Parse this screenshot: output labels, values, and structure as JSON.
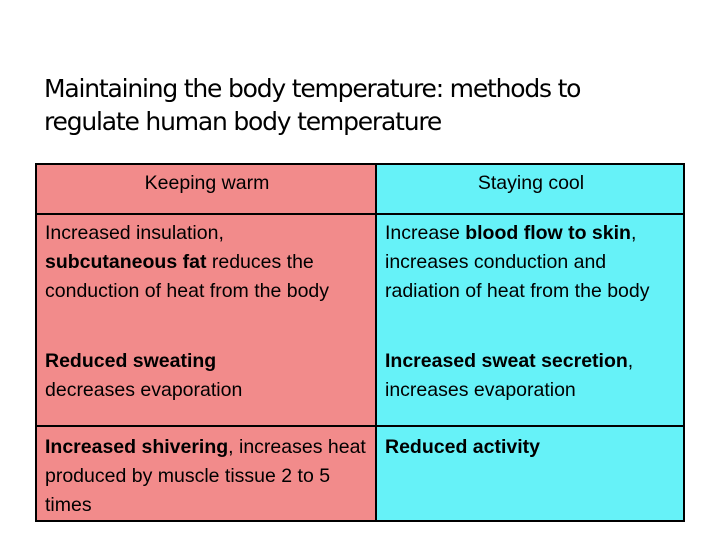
{
  "slide": {
    "title_line1": "Maintaining the body temperature: methods to",
    "title_line2": "regulate human body temperature"
  },
  "table": {
    "headers": {
      "keeping_warm": "Keeping warm",
      "staying_cool": "Staying cool"
    },
    "rows": [
      {
        "warm": {
          "t1": "Increased insulation,",
          "b1": "subcutaneous fat",
          "t2": " reduces the conduction of heat from the body"
        },
        "cool": {
          "t1": "Increase ",
          "b1": "blood flow to skin",
          "t2": ", increases conduction and radiation of heat from the body"
        }
      },
      {
        "warm": {
          "b1": "Reduced sweating",
          "t1": "decreases evaporation"
        },
        "cool": {
          "b1": "Increased sweat secretion",
          "t1": ", increases evaporation"
        }
      },
      {
        "warm": {
          "b1": "Increased shivering",
          "t1": ", increases heat produced by muscle tissue 2 to 5 times"
        },
        "cool": {
          "b1": "Reduced activity"
        }
      }
    ]
  },
  "colors": {
    "warm_column": "#f28b8b",
    "cool_column": "#66f2f8",
    "border": "#000000"
  }
}
